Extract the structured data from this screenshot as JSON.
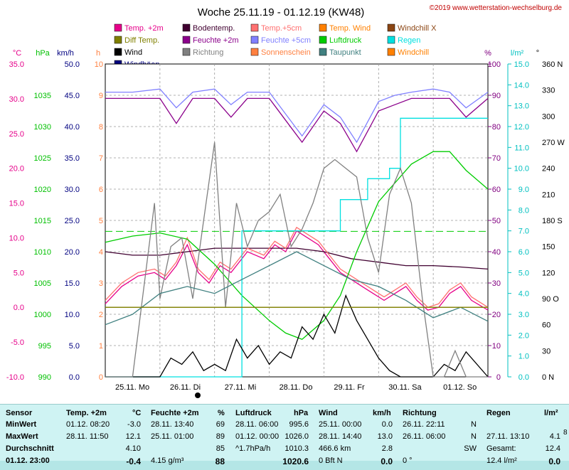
{
  "title": "Woche 25.11.19 - 01.12.19 (KW48)",
  "copyright": "©2019 www.wetterstation-wechselburg.de",
  "legend": [
    {
      "label": "Temp. +2m",
      "color": "#e6008a",
      "marker": "box"
    },
    {
      "label": "Bodentemp.",
      "color": "#400030",
      "marker": "box"
    },
    {
      "label": "Temp.+5cm",
      "color": "#ff7070",
      "marker": "box"
    },
    {
      "label": "Temp. Wind",
      "color": "#ff8000",
      "marker": "box"
    },
    {
      "label": "Windchill X",
      "color": "#8b4513",
      "marker": "box"
    },
    {
      "label": "Diff Temp.",
      "color": "#808000",
      "marker": "box"
    },
    {
      "label": "Feuchte +2m",
      "color": "#8b008b",
      "marker": "box"
    },
    {
      "label": "Feuchte +5cm",
      "color": "#8080ff",
      "marker": "box"
    },
    {
      "label": "Luftdruck",
      "color": "#00cc00",
      "marker": "box"
    },
    {
      "label": "Regen",
      "color": "#00e0e0",
      "marker": "box"
    },
    {
      "label": "Wind",
      "color": "#000000",
      "marker": "box"
    },
    {
      "label": "Richtung",
      "color": "#808080",
      "marker": "box"
    },
    {
      "label": "Sonnenschein",
      "color": "#ff8040",
      "marker": "box"
    },
    {
      "label": "Taupunkt",
      "color": "#408080",
      "marker": "box"
    },
    {
      "label": "Windchill",
      "color": "#ff8000",
      "marker": "box"
    },
    {
      "label": "Windböen",
      "color": "#000080",
      "marker": "box"
    }
  ],
  "unit_labels": {
    "temp": "°C",
    "pressure": "hPa",
    "wind": "km/h",
    "sun": "h",
    "humidity": "%",
    "rain": "l/m²",
    "dir": "°"
  },
  "colors": {
    "temp": "#e6008a",
    "pressure": "#00c000",
    "wind": "#000000",
    "sun": "#ff8040",
    "humidity": "#800080",
    "rain": "#00c0c0",
    "dir": "#808080"
  },
  "axes": {
    "temp": [
      "35.0",
      "30.0",
      "25.0",
      "20.0",
      "15.0",
      "10.0",
      "5.0",
      "0.0",
      "-5.0",
      "-10.0"
    ],
    "pressure": [
      "1035",
      "1030",
      "1025",
      "1020",
      "1015",
      "1010",
      "1005",
      "1000",
      "995",
      "990"
    ],
    "wind": [
      "50.0",
      "45.0",
      "40.0",
      "35.0",
      "30.0",
      "25.0",
      "20.0",
      "15.0",
      "10.0",
      "5.0",
      "0.0"
    ],
    "sun": [
      "10",
      "9",
      "8",
      "7",
      "6",
      "5",
      "4",
      "3",
      "2",
      "1",
      "0"
    ],
    "humidity": [
      "100",
      "90",
      "80",
      "70",
      "60",
      "50",
      "40",
      "30",
      "20",
      "10",
      "0"
    ],
    "rain": [
      "15.0",
      "14.0",
      "13.0",
      "12.0",
      "11.0",
      "10.0",
      "9.0",
      "8.0",
      "7.0",
      "6.0",
      "5.0",
      "4.0",
      "3.0",
      "2.0",
      "1.0",
      "0.0"
    ],
    "dir": [
      "360 N",
      "330",
      "300",
      "270 W",
      "240",
      "210",
      "180 S",
      "150",
      "120",
      "90 O",
      "60",
      "30",
      "0 N"
    ]
  },
  "chart_data": {
    "type": "line",
    "title": "Woche 25.11.19 - 01.12.19 (KW48)",
    "x_labels": [
      "25.11. Mo",
      "26.11. Di",
      "27.11. Mi",
      "28.11. Do",
      "29.11. Fr",
      "30.11. Sa",
      "01.12. So"
    ],
    "x_range_days": [
      0,
      7
    ],
    "series": [
      {
        "name": "Temp. +2m",
        "axis": "temp",
        "color": "#e6008a",
        "x": [
          0,
          0.3,
          0.6,
          0.9,
          1.1,
          1.3,
          1.5,
          1.7,
          1.9,
          2.1,
          2.3,
          2.6,
          2.9,
          3.1,
          3.3,
          3.5,
          3.7,
          3.9,
          4.1,
          4.3,
          4.5,
          4.7,
          4.9,
          5.1,
          5.3,
          5.5,
          5.7,
          5.9,
          6.1,
          6.3,
          6.5,
          6.7,
          7
        ],
        "y": [
          0.5,
          3,
          4.5,
          5,
          4,
          6,
          9,
          5,
          3.5,
          6,
          5,
          8,
          7,
          9,
          8,
          11,
          10,
          9,
          7,
          5,
          4,
          3,
          2,
          1,
          2,
          3,
          1,
          -0.4,
          0,
          2,
          3,
          1,
          -0.4
        ]
      },
      {
        "name": "Bodentemp.",
        "axis": "temp",
        "color": "#400030",
        "x": [
          0,
          0.5,
          1,
          1.5,
          2,
          2.5,
          3,
          3.5,
          4,
          4.5,
          5,
          5.5,
          6,
          6.5,
          7
        ],
        "y": [
          8,
          7.5,
          7.5,
          8,
          8.5,
          8.5,
          8.5,
          8.5,
          8,
          7,
          6.5,
          6,
          6,
          5.8,
          5.5
        ]
      },
      {
        "name": "Temp.+5cm",
        "axis": "temp",
        "color": "#ff7070",
        "x": [
          0,
          0.3,
          0.6,
          0.9,
          1.1,
          1.3,
          1.5,
          1.7,
          1.9,
          2.1,
          2.3,
          2.6,
          2.9,
          3.1,
          3.3,
          3.5,
          3.7,
          3.9,
          4.1,
          4.3,
          4.5,
          4.7,
          4.9,
          5.1,
          5.3,
          5.5,
          5.7,
          5.9,
          6.1,
          6.3,
          6.5,
          6.7,
          7
        ],
        "y": [
          1,
          3.5,
          5,
          5.5,
          4.5,
          6.5,
          10,
          5.5,
          4,
          6.5,
          5.5,
          8.5,
          7.5,
          9.5,
          8.5,
          11.5,
          10.5,
          9.5,
          7.5,
          5.5,
          4.5,
          3.5,
          2.5,
          1.5,
          2.5,
          3.5,
          1.5,
          0,
          0.5,
          2.5,
          3.5,
          1.5,
          0
        ]
      },
      {
        "name": "Luftdruck",
        "axis": "pressure",
        "color": "#00cc00",
        "x": [
          0,
          0.5,
          1,
          1.5,
          2,
          2.5,
          3,
          3.3,
          3.6,
          4,
          4.3,
          4.6,
          5,
          5.3,
          5.6,
          6,
          6.3,
          6.6,
          7
        ],
        "y": [
          1011.5,
          1012.5,
          1013,
          1012,
          1008,
          1003,
          999,
          997,
          996,
          999,
          1003,
          1010,
          1018,
          1021,
          1024,
          1026,
          1026,
          1023,
          1020
        ]
      },
      {
        "name": "Feuchte +2m",
        "axis": "humidity",
        "color": "#8b008b",
        "x": [
          0,
          0.5,
          1,
          1.3,
          1.6,
          2,
          2.3,
          2.6,
          3,
          3.3,
          3.6,
          4,
          4.3,
          4.6,
          5,
          5.3,
          5.6,
          6,
          6.3,
          6.6,
          7
        ],
        "y": [
          89,
          89,
          89,
          81,
          89,
          89,
          83,
          89,
          89,
          82,
          75,
          85,
          81,
          72,
          85,
          87,
          89,
          89,
          89,
          83,
          89
        ]
      },
      {
        "name": "Feuchte +5cm",
        "axis": "humidity",
        "color": "#8080ff",
        "x": [
          0,
          0.5,
          1,
          1.3,
          1.6,
          2,
          2.3,
          2.6,
          3,
          3.3,
          3.6,
          4,
          4.3,
          4.6,
          5,
          5.3,
          5.6,
          6,
          6.3,
          6.6,
          7
        ],
        "y": [
          91,
          91,
          92,
          86,
          91,
          92,
          87,
          91,
          91,
          84,
          77,
          87,
          83,
          75,
          88,
          90,
          91,
          92,
          91,
          86,
          91
        ]
      },
      {
        "name": "Regen",
        "axis": "rain",
        "color": "#00e0e0",
        "x": [
          0,
          2.5,
          2.5,
          2.7,
          2.7,
          4,
          4,
          4.3,
          4.3,
          4.8,
          4.8,
          5.2,
          5.2,
          5.4,
          5.4,
          7
        ],
        "y": [
          0,
          0,
          7,
          7,
          7,
          7,
          7,
          7,
          8.5,
          8.5,
          9.5,
          9.5,
          10,
          10,
          12.4,
          12.4
        ]
      },
      {
        "name": "Wind",
        "axis": "wind",
        "color": "#000000",
        "x": [
          0,
          0.5,
          1,
          1.2,
          1.4,
          1.6,
          1.8,
          2,
          2.2,
          2.4,
          2.6,
          2.8,
          3,
          3.2,
          3.4,
          3.6,
          3.8,
          4,
          4.2,
          4.4,
          4.6,
          4.8,
          5,
          5.2,
          5.4,
          5.6,
          5.8,
          6,
          6.2,
          6.4,
          6.6,
          7
        ],
        "y": [
          0,
          0,
          0,
          3,
          2,
          4,
          1,
          2,
          1,
          6,
          3,
          5,
          2,
          4,
          3,
          8,
          6,
          10,
          7,
          13,
          9,
          6,
          3,
          1,
          0,
          0,
          0,
          0,
          2,
          1,
          4,
          0
        ]
      },
      {
        "name": "Richtung",
        "axis": "dir",
        "color": "#808080",
        "x": [
          0,
          0.5,
          0.9,
          1,
          1.2,
          1.4,
          1.6,
          1.8,
          2,
          2.2,
          2.4,
          2.6,
          2.8,
          3,
          3.2,
          3.4,
          3.6,
          3.8,
          4,
          4.2,
          4.4,
          4.6,
          4.8,
          5,
          5.2,
          5.4,
          5.6,
          5.8,
          6,
          6.2,
          6.4,
          6.6,
          6.8,
          7
        ],
        "y": [
          0,
          0,
          200,
          90,
          150,
          160,
          90,
          180,
          270,
          80,
          200,
          150,
          180,
          190,
          210,
          150,
          170,
          200,
          240,
          250,
          240,
          230,
          160,
          120,
          210,
          240,
          200,
          90,
          0,
          0,
          30,
          0,
          0,
          0
        ]
      },
      {
        "name": "Taupunkt",
        "axis": "temp",
        "color": "#408080",
        "x": [
          0,
          0.5,
          1,
          1.5,
          2,
          2.5,
          3,
          3.5,
          4,
          4.5,
          5,
          5.5,
          6,
          6.5,
          7
        ],
        "y": [
          -2.5,
          -1,
          2,
          3,
          2,
          4,
          6,
          8,
          6,
          4,
          3,
          1,
          -1.5,
          0,
          -2
        ]
      },
      {
        "name": "Diff Temp.",
        "axis": "temp",
        "color": "#808000",
        "x": [
          0,
          1,
          2,
          3,
          4,
          5,
          6,
          7
        ],
        "y": [
          0,
          0,
          0,
          0,
          0,
          0,
          0,
          0
        ]
      }
    ]
  },
  "table": {
    "headers": [
      "Sensor",
      "Temp. +2m",
      "°C",
      "Feuchte +2m",
      "%",
      "Luftdruck",
      "hPa",
      "Wind",
      "km/h",
      "Richtung",
      "Regen",
      "l/m²"
    ],
    "rows": [
      {
        "label": "MinWert",
        "t_time": "01.12. 08:20",
        "t_val": "-3.0",
        "h_time": "28.11. 13:40",
        "h_val": "69",
        "p_time": "28.11. 06:00",
        "p_val": "995.6",
        "w_time": "25.11. 00:00",
        "w_val": "0.0",
        "d_time": "26.11. 22:11",
        "d_val": "N",
        "r_time": "",
        "r_val": ""
      },
      {
        "label": "MaxWert",
        "t_time": "28.11. 11:50",
        "t_val": "12.1",
        "h_time": "25.11. 01:00",
        "h_val": "89",
        "p_time": "01.12. 00:00",
        "p_val": "1026.0",
        "w_time": "28.11. 14:40",
        "w_val": "13.0",
        "d_time": "26.11. 06:00",
        "d_val": "N",
        "r_time": "27.11. 13:10",
        "r_val": "4.1"
      },
      {
        "label": "Durchschnitt",
        "t_time": "",
        "t_val": "4.10",
        "h_time": "",
        "h_val": "85",
        "p_time": "^1.7hPa/h",
        "p_val": "1010.3",
        "w_time": "466.6 km",
        "w_val": "2.8",
        "d_time": "",
        "d_val": "SW",
        "r_time": "Gesamt:",
        "r_val": "12.4"
      },
      {
        "label": "01.12. 23:00",
        "t_time": "",
        "t_val": "-0.4",
        "h_time": "4.15 g/m³",
        "h_val": "88",
        "p_time": "",
        "p_val": "1020.6",
        "w_time": "0 Bft N",
        "w_val": "0.0",
        "d_time": "0 °",
        "d_val": "",
        "r_time": "12.4 l/m²",
        "r_val": "0.0"
      }
    ],
    "edge_mark": "8"
  }
}
